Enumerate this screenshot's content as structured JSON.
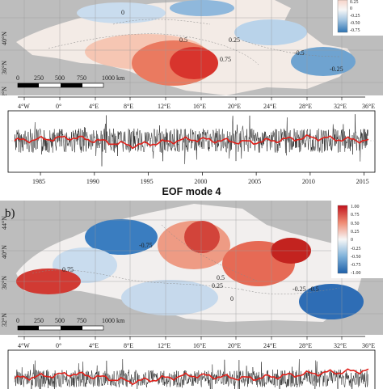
{
  "map_common": {
    "lon_ticks": [
      "4°W",
      "0°",
      "4°E",
      "8°E",
      "12°E",
      "16°E",
      "20°E",
      "24°E",
      "28°E",
      "32°E",
      "36°E"
    ],
    "lat_ticks": [
      "44°N",
      "40°N",
      "36°N",
      "32°N"
    ],
    "scalebar": [
      "0",
      "250",
      "500",
      "750",
      "1000 km"
    ]
  },
  "panel_a": {
    "colorbar_ticks": [
      "0.25",
      "0",
      "-0.25",
      "-0.50",
      "-0.75"
    ],
    "contours": [
      "0",
      "0.5",
      "0.25",
      "0.75",
      "-0.5",
      "-0.25"
    ]
  },
  "panel_b": {
    "label": "b)",
    "title": "EOF mode 4",
    "colorbar_ticks": [
      "1.00",
      "0.75",
      "0.50",
      "0.25",
      "0",
      "-0.25",
      "-0.50",
      "-0.75",
      "-1.00"
    ],
    "contours": [
      "-0.75",
      "0.75",
      "0.5",
      "0.25",
      "0",
      "-0.25",
      "-0.5"
    ]
  },
  "chart_data": [
    {
      "type": "line",
      "x": [
        "1985",
        "1990",
        "1995",
        "2000",
        "2005",
        "2010",
        "2015"
      ],
      "series": [
        {
          "values": [
            0.0,
            0.02,
            -0.03,
            0.01,
            -0.01,
            0.02,
            0.0
          ]
        }
      ],
      "xlim": [
        1982,
        2016
      ]
    },
    {
      "type": "line",
      "series": [
        {
          "values": [
            0.0,
            0.03,
            -0.02,
            0.02,
            0.0,
            0.03,
            0.05
          ]
        }
      ],
      "xlim": [
        1982,
        2016
      ]
    }
  ]
}
